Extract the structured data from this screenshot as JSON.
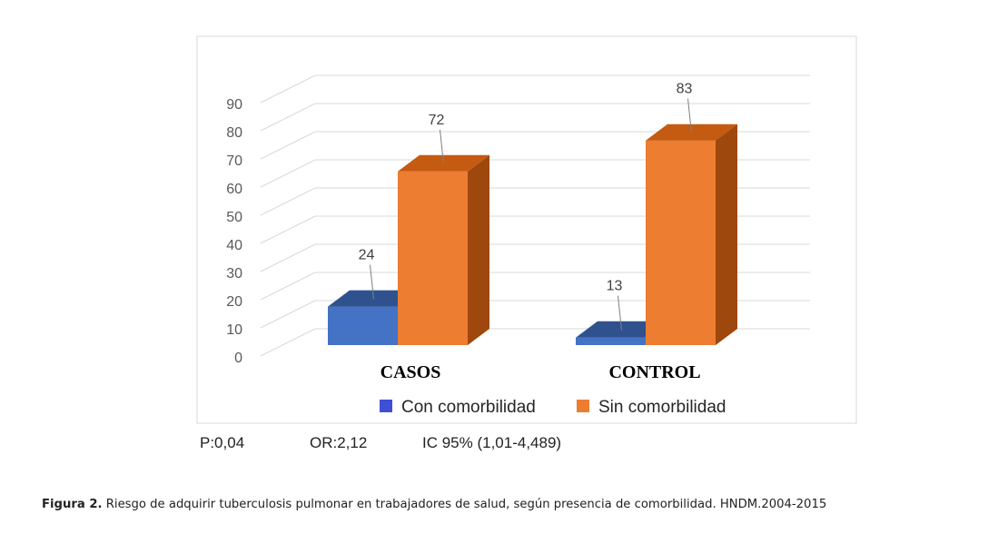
{
  "chart_data": {
    "type": "bar",
    "style": "3d-clustered-column",
    "categories": [
      "CASOS",
      "CONTROL"
    ],
    "series": [
      {
        "name": "Con comorbilidad",
        "values": [
          24,
          13
        ],
        "color": "#4472C4",
        "top_color": "#2F528F",
        "side_color": "#2F528F"
      },
      {
        "name": "Sin comorbilidad",
        "values": [
          72,
          83
        ],
        "color": "#ED7D31",
        "top_color": "#C55A11",
        "side_color": "#9E480E"
      }
    ],
    "y_ticks": [
      "0",
      "10",
      "20",
      "30",
      "40",
      "50",
      "60",
      "70",
      "80",
      "90"
    ],
    "ylim": [
      0,
      90
    ],
    "grid": true,
    "legend_position": "bottom"
  },
  "stats": {
    "p": "P:0,04",
    "or": "OR:2,12",
    "ic": "IC 95% (1,01-4,489)"
  },
  "caption": {
    "label": "Figura 2.",
    "text": " Riesgo de adquirir tuberculosis pulmonar en trabajadores de salud, según presencia de comorbilidad. HNDM.2004-2015"
  }
}
